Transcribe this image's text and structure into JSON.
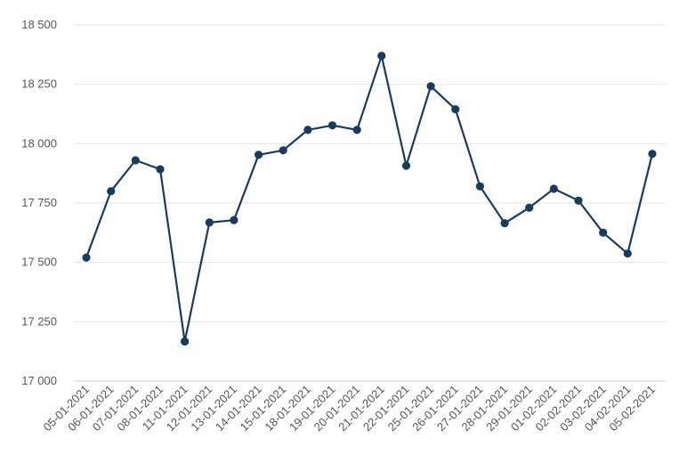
{
  "chart_data": {
    "type": "line",
    "title": "",
    "xlabel": "",
    "ylabel": "",
    "categories": [
      "05-01-2021",
      "06-01-2021",
      "07-01-2021",
      "08-01-2021",
      "11-01-2021",
      "12-01-2021",
      "13-01-2021",
      "14-01-2021",
      "15-01-2021",
      "18-01-2021",
      "19-01-2021",
      "20-01-2021",
      "21-01-2021",
      "22-01-2021",
      "25-01-2021",
      "26-01-2021",
      "27-01-2021",
      "28-01-2021",
      "29-01-2021",
      "01-02-2021",
      "02-02-2021",
      "03-02-2021",
      "04-02-2021",
      "05-02-2021"
    ],
    "series": [
      {
        "color": "#173c5f",
        "values": [
          17520,
          17800,
          17930,
          17892,
          17167,
          17668,
          17678,
          17953,
          17972,
          18058,
          18077,
          18058,
          18370,
          17907,
          18242,
          18145,
          17820,
          17665,
          17730,
          17810,
          17760,
          17625,
          17537,
          17957
        ]
      }
    ],
    "ylim": [
      17000,
      18500
    ],
    "yticks": [
      17000,
      17250,
      17500,
      17750,
      18000,
      18250,
      18500
    ],
    "ytick_labels": [
      "17 000",
      "17 250",
      "17 500",
      "17 750",
      "18 000",
      "18 250",
      "18 500"
    ],
    "grid": true,
    "legend": "none"
  }
}
